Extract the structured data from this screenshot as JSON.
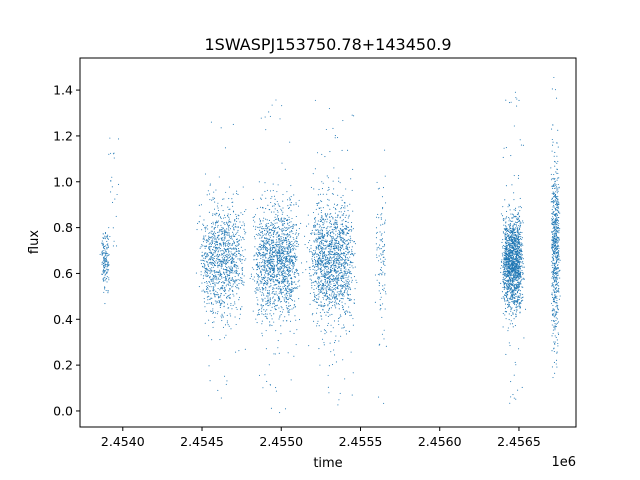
{
  "chart_data": {
    "type": "scatter",
    "title": "1SWASPJ153750.78+143450.9",
    "xlabel": "time",
    "ylabel": "flux",
    "x_offset_label": "1e6",
    "x_tick_labels": [
      "2.4540",
      "2.4545",
      "2.4550",
      "2.4555",
      "2.4560",
      "2.4565"
    ],
    "x_ticks": [
      2.454,
      2.4545,
      2.455,
      2.4555,
      2.456,
      2.4565
    ],
    "y_tick_labels": [
      "0.0",
      "0.2",
      "0.4",
      "0.6",
      "0.8",
      "1.0",
      "1.2",
      "1.4"
    ],
    "y_ticks": [
      0.0,
      0.2,
      0.4,
      0.6,
      0.8,
      1.0,
      1.2,
      1.4
    ],
    "xlim": [
      2.45373,
      2.45686
    ],
    "ylim": [
      -0.07,
      1.54
    ],
    "grid": false,
    "marker_color": "#1f77b4",
    "clusters": [
      {
        "x_center": 2.45389,
        "x_width": 2e-05,
        "y_center": 0.66,
        "y_spread": 0.07,
        "y_min": 0.44,
        "y_max": 0.93,
        "n": 160
      },
      {
        "x_center": 2.45394,
        "x_width": 3e-05,
        "y_center": 0.97,
        "y_spread": 0.13,
        "y_min": 0.72,
        "y_max": 1.22,
        "n": 22
      },
      {
        "x_center": 2.45463,
        "x_width": 0.00011,
        "y_center": 0.66,
        "y_spread": 0.12,
        "y_min": 0.03,
        "y_max": 1.4,
        "n": 1100
      },
      {
        "x_center": 2.45497,
        "x_width": 0.00011,
        "y_center": 0.65,
        "y_spread": 0.12,
        "y_min": -0.01,
        "y_max": 1.38,
        "n": 1500
      },
      {
        "x_center": 2.45532,
        "x_width": 0.00011,
        "y_center": 0.66,
        "y_spread": 0.13,
        "y_min": 0.02,
        "y_max": 1.4,
        "n": 1500
      },
      {
        "x_center": 2.45563,
        "x_width": 3e-05,
        "y_center": 0.68,
        "y_spread": 0.15,
        "y_min": 0.02,
        "y_max": 1.44,
        "n": 110
      },
      {
        "x_center": 2.45646,
        "x_width": 5e-05,
        "y_center": 0.65,
        "y_spread": 0.1,
        "y_min": 0.03,
        "y_max": 1.41,
        "n": 1600
      },
      {
        "x_center": 2.45673,
        "x_width": 2e-05,
        "y_center": 0.72,
        "y_spread": 0.18,
        "y_min": 0.03,
        "y_max": 1.47,
        "n": 650
      }
    ]
  }
}
